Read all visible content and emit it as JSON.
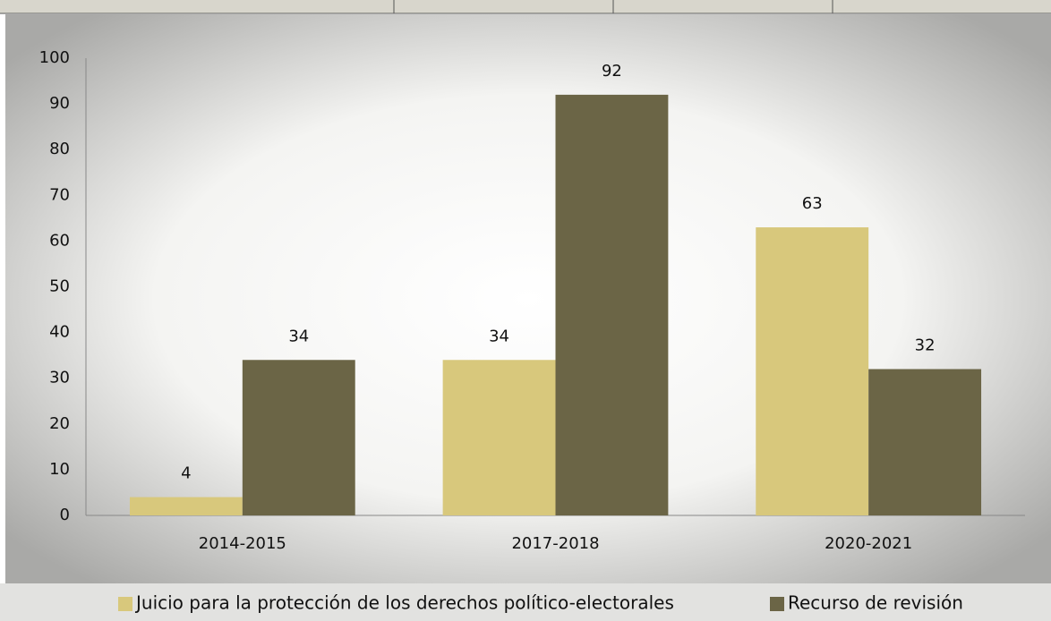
{
  "chart_data": {
    "type": "bar",
    "categories": [
      "2014-2015",
      "2017-2018",
      "2020-2021"
    ],
    "series": [
      {
        "name": "Juicio para la protección de los derechos político-electorales",
        "color": "#d8c87c",
        "values": [
          4,
          34,
          63
        ]
      },
      {
        "name": "Recurso de revisión",
        "color": "#6b6546",
        "values": [
          34,
          92,
          32
        ]
      }
    ],
    "ylim": [
      0,
      100
    ],
    "yticks": [
      0,
      10,
      20,
      30,
      40,
      50,
      60,
      70,
      80,
      90,
      100
    ],
    "grid": false,
    "legend": "bottom"
  }
}
